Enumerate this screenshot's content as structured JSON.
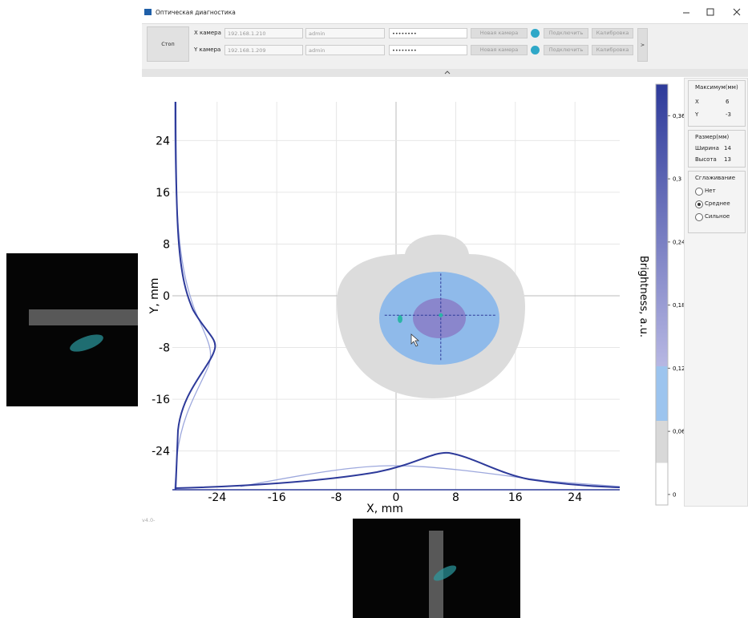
{
  "window": {
    "title": "Оптическая диагностика"
  },
  "toolbar": {
    "stop": "Стоп",
    "more": ">",
    "cameras": [
      {
        "label": "X камера",
        "ip": "192.168.1.210",
        "user": "admin",
        "password": "••••••••",
        "select": "Новая камера",
        "connect": "Подключить",
        "calibrate": "Калибровка"
      },
      {
        "label": "Y камера",
        "ip": "192.168.1.209",
        "user": "admin",
        "password": "••••••••",
        "select": "Новая камера",
        "connect": "Подключить",
        "calibrate": "Калибровка"
      }
    ]
  },
  "plot": {
    "x_label": "X, mm",
    "y_label": "Y, mm",
    "xlim": [
      -30,
      30
    ],
    "ylim": [
      -30,
      30
    ],
    "xticks": [
      -24,
      -16,
      -8,
      0,
      8,
      16,
      24
    ],
    "yticks": [
      24,
      16,
      8,
      0,
      -8,
      -16,
      -24
    ],
    "colorbar": {
      "label": "Brightness, a.u.",
      "lim": [
        -0.01,
        0.39
      ],
      "ticks": [
        0,
        {
          "value": 0.06,
          "label": "0,06"
        },
        {
          "value": 0.12,
          "label": "0,12"
        },
        {
          "value": 0.18,
          "label": "0,18"
        },
        {
          "value": 0.24,
          "label": "0,24"
        },
        {
          "value": 0.3,
          "label": "0,3"
        },
        {
          "value": 0.36,
          "label": "0,36"
        }
      ]
    }
  },
  "panel": {
    "maximum": {
      "title": "Максимум(мм)",
      "x_label": "X",
      "x": 6,
      "y_label": "Y",
      "y": -3
    },
    "size": {
      "title": "Размер(мм)",
      "width_label": "Ширина",
      "width": 14,
      "height_label": "Высота",
      "height": 13
    },
    "smoothing": {
      "title": "Сглаживание",
      "options": [
        "Нет",
        "Среднее",
        "Сильное"
      ],
      "selected": 1
    }
  },
  "version": "v4.0-"
}
